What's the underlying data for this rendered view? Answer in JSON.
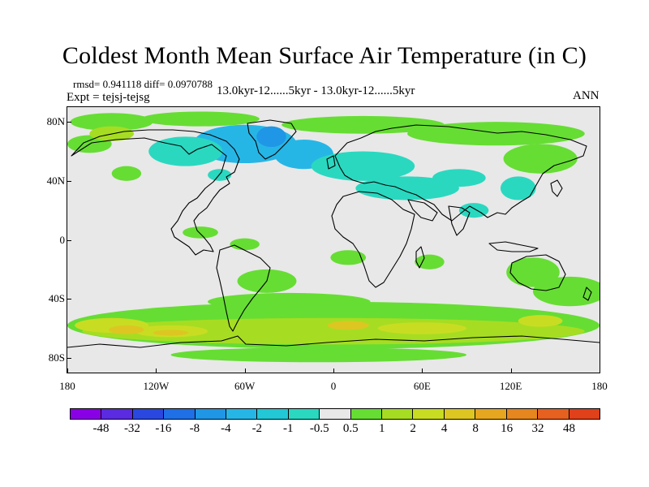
{
  "title": "Coldest Month Mean Surface Air Temperature (in C)",
  "stats_line": "rmsd= 0.941118 diff= 0.0970788",
  "experiment_line": "Expt = tejsj-tejsg",
  "comparison_line": "13.0kyr-12......5kyr - 13.0kyr-12......5kyr",
  "season_label": "ANN",
  "x_axis": {
    "ticks": [
      {
        "value": -180,
        "label": "180"
      },
      {
        "value": -120,
        "label": "120W"
      },
      {
        "value": -60,
        "label": "60W"
      },
      {
        "value": 0,
        "label": "0"
      },
      {
        "value": 60,
        "label": "60E"
      },
      {
        "value": 120,
        "label": "120E"
      },
      {
        "value": 180,
        "label": "180"
      }
    ]
  },
  "y_axis": {
    "ticks": [
      {
        "value": 80,
        "label": "80N"
      },
      {
        "value": 40,
        "label": "40N"
      },
      {
        "value": 0,
        "label": "0"
      },
      {
        "value": -40,
        "label": "40S"
      },
      {
        "value": -80,
        "label": "80S"
      }
    ]
  },
  "colorbar": {
    "colors": [
      "#8a00e6",
      "#5a2be0",
      "#2a48e0",
      "#1f6fe6",
      "#1f96e6",
      "#26b6e6",
      "#22c8d6",
      "#2ad8c0",
      "#e8e8e8",
      "#66dd33",
      "#a6dd22",
      "#c8dd22",
      "#ddc622",
      "#e6a61f",
      "#e6861f",
      "#e6601f",
      "#e0401a"
    ],
    "labels": [
      "-48",
      "-32",
      "-16",
      "-8",
      "-4",
      "-2",
      "-1",
      "-0.5",
      "0.5",
      "1",
      "2",
      "4",
      "8",
      "16",
      "32",
      "48"
    ]
  },
  "anomaly_regions": [
    {
      "color": "#66dd33",
      "lon": -150,
      "lat": 80,
      "rlon": 28,
      "rlat": 6
    },
    {
      "color": "#66dd33",
      "lon": -90,
      "lat": 82,
      "rlon": 40,
      "rlat": 5
    },
    {
      "color": "#66dd33",
      "lon": 20,
      "lat": 78,
      "rlon": 55,
      "rlat": 6
    },
    {
      "color": "#66dd33",
      "lon": 110,
      "lat": 72,
      "rlon": 60,
      "rlat": 8
    },
    {
      "color": "#66dd33",
      "lon": -165,
      "lat": 65,
      "rlon": 15,
      "rlat": 6
    },
    {
      "color": "#66dd33",
      "lon": 140,
      "lat": 55,
      "rlon": 25,
      "rlat": 10
    },
    {
      "color": "#66dd33",
      "lon": -140,
      "lat": 45,
      "rlon": 10,
      "rlat": 5
    },
    {
      "color": "#a6dd22",
      "lon": -150,
      "lat": 72,
      "rlon": 15,
      "rlat": 5
    },
    {
      "color": "#26b6e6",
      "lon": -60,
      "lat": 65,
      "rlon": 35,
      "rlat": 13
    },
    {
      "color": "#1f96e6",
      "lon": -42,
      "lat": 70,
      "rlon": 10,
      "rlat": 7
    },
    {
      "color": "#26b6e6",
      "lon": -20,
      "lat": 58,
      "rlon": 20,
      "rlat": 10
    },
    {
      "color": "#2ad8c0",
      "lon": -100,
      "lat": 60,
      "rlon": 25,
      "rlat": 10
    },
    {
      "color": "#2ad8c0",
      "lon": 20,
      "lat": 50,
      "rlon": 35,
      "rlat": 10
    },
    {
      "color": "#2ad8c0",
      "lon": 50,
      "lat": 35,
      "rlon": 35,
      "rlat": 8
    },
    {
      "color": "#2ad8c0",
      "lon": 85,
      "lat": 42,
      "rlon": 18,
      "rlat": 6
    },
    {
      "color": "#2ad8c0",
      "lon": 95,
      "lat": 20,
      "rlon": 10,
      "rlat": 5
    },
    {
      "color": "#2ad8c0",
      "lon": 125,
      "lat": 35,
      "rlon": 12,
      "rlat": 8
    },
    {
      "color": "#2ad8c0",
      "lon": -77,
      "lat": 44,
      "rlon": 8,
      "rlat": 4
    },
    {
      "color": "#66dd33",
      "lon": -45,
      "lat": -28,
      "rlon": 20,
      "rlat": 8
    },
    {
      "color": "#66dd33",
      "lon": -30,
      "lat": -42,
      "rlon": 55,
      "rlat": 6
    },
    {
      "color": "#66dd33",
      "lon": 10,
      "lat": -12,
      "rlon": 12,
      "rlat": 5
    },
    {
      "color": "#66dd33",
      "lon": 65,
      "lat": -15,
      "rlon": 10,
      "rlat": 5
    },
    {
      "color": "#66dd33",
      "lon": 160,
      "lat": -35,
      "rlon": 25,
      "rlat": 10
    },
    {
      "color": "#66dd33",
      "lon": 135,
      "lat": -22,
      "rlon": 18,
      "rlat": 10
    },
    {
      "color": "#66dd33",
      "lon": -90,
      "lat": 5,
      "rlon": 12,
      "rlat": 4
    },
    {
      "color": "#66dd33",
      "lon": -60,
      "lat": -3,
      "rlon": 10,
      "rlat": 4
    },
    {
      "color": "#66dd33",
      "lon": 0,
      "lat": -58,
      "rlon": 180,
      "rlat": 16
    },
    {
      "color": "#a6dd22",
      "lon": 0,
      "lat": -62,
      "rlon": 170,
      "rlat": 9
    },
    {
      "color": "#c8dd22",
      "lon": -150,
      "lat": -58,
      "rlon": 25,
      "rlat": 5
    },
    {
      "color": "#c8dd22",
      "lon": -110,
      "lat": -62,
      "rlon": 25,
      "rlat": 4
    },
    {
      "color": "#c8dd22",
      "lon": 60,
      "lat": -60,
      "rlon": 30,
      "rlat": 4
    },
    {
      "color": "#c8dd22",
      "lon": 140,
      "lat": -55,
      "rlon": 15,
      "rlat": 4
    },
    {
      "color": "#ddc622",
      "lon": -140,
      "lat": -61,
      "rlon": 12,
      "rlat": 3
    },
    {
      "color": "#ddc622",
      "lon": -110,
      "lat": -63,
      "rlon": 12,
      "rlat": 2
    },
    {
      "color": "#ddc622",
      "lon": 10,
      "lat": -58,
      "rlon": 14,
      "rlat": 3
    },
    {
      "color": "#66dd33",
      "lon": -10,
      "lat": -78,
      "rlon": 100,
      "rlat": 5
    }
  ]
}
